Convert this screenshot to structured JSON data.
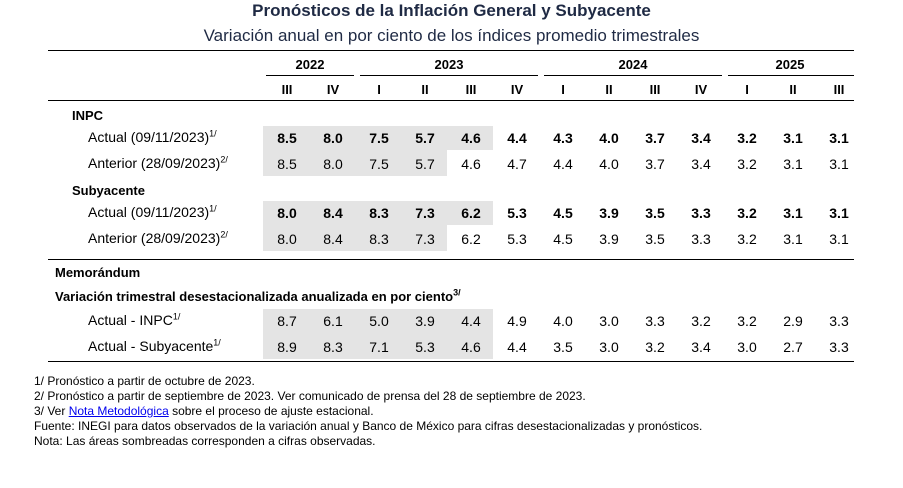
{
  "title": "Pronósticos de la Inflación General y Subyacente",
  "subtitle": "Variación anual en por ciento de los índices promedio trimestrales",
  "years": [
    "2022",
    "2023",
    "2024",
    "2025"
  ],
  "quarters": [
    "III",
    "IV",
    "I",
    "II",
    "III",
    "IV",
    "I",
    "II",
    "III",
    "IV",
    "I",
    "II",
    "III"
  ],
  "sections": {
    "inpc": "INPC",
    "subyacente": "Subyacente",
    "memorandum": "Memorándum",
    "variacion": "Variación trimestral desestacionalizada anualizada en por ciento",
    "variacion_sup": "3/"
  },
  "rows": [
    {
      "label": "Actual (09/11/2023)",
      "sup": "1/",
      "bold": true,
      "shaded": 5,
      "values": [
        "8.5",
        "8.0",
        "7.5",
        "5.7",
        "4.6",
        "4.4",
        "4.3",
        "4.0",
        "3.7",
        "3.4",
        "3.2",
        "3.1",
        "3.1"
      ]
    },
    {
      "label": "Anterior (28/09/2023)",
      "sup": "2/",
      "bold": false,
      "shaded": 4,
      "values": [
        "8.5",
        "8.0",
        "7.5",
        "5.7",
        "4.6",
        "4.7",
        "4.4",
        "4.0",
        "3.7",
        "3.4",
        "3.2",
        "3.1",
        "3.1"
      ]
    },
    {
      "label": "Actual (09/11/2023)",
      "sup": "1/",
      "bold": true,
      "shaded": 5,
      "values": [
        "8.0",
        "8.4",
        "8.3",
        "7.3",
        "6.2",
        "5.3",
        "4.5",
        "3.9",
        "3.5",
        "3.3",
        "3.2",
        "3.1",
        "3.1"
      ]
    },
    {
      "label": "Anterior (28/09/2023)",
      "sup": "2/",
      "bold": false,
      "shaded": 4,
      "values": [
        "8.0",
        "8.4",
        "8.3",
        "7.3",
        "6.2",
        "5.3",
        "4.5",
        "3.9",
        "3.5",
        "3.3",
        "3.2",
        "3.1",
        "3.1"
      ]
    },
    {
      "label": "Actual - INPC",
      "sup": "1/",
      "bold": false,
      "shaded": 5,
      "values": [
        "8.7",
        "6.1",
        "5.0",
        "3.9",
        "4.4",
        "4.9",
        "4.0",
        "3.0",
        "3.3",
        "3.2",
        "3.2",
        "2.9",
        "3.3"
      ]
    },
    {
      "label": "Actual - Subyacente",
      "sup": "1/",
      "bold": false,
      "shaded": 5,
      "values": [
        "8.9",
        "8.3",
        "7.1",
        "5.3",
        "4.6",
        "4.4",
        "3.5",
        "3.0",
        "3.2",
        "3.4",
        "3.0",
        "2.7",
        "3.3"
      ]
    }
  ],
  "notes": {
    "n1": "1/ Pronóstico a partir de octubre de 2023.",
    "n2": "2/ Pronóstico a partir de septiembre de 2023. Ver comunicado de prensa del 28 de septiembre de 2023.",
    "n3_prefix": "3/ Ver ",
    "n3_link": "Nota Metodológica",
    "n3_suffix": " sobre el proceso de ajuste estacional.",
    "fuente": "Fuente: INEGI para datos observados de la variación anual y Banco de México para cifras desestacionalizadas y pronósticos.",
    "nota": "Nota: Las áreas sombreadas corresponden a cifras observadas."
  }
}
